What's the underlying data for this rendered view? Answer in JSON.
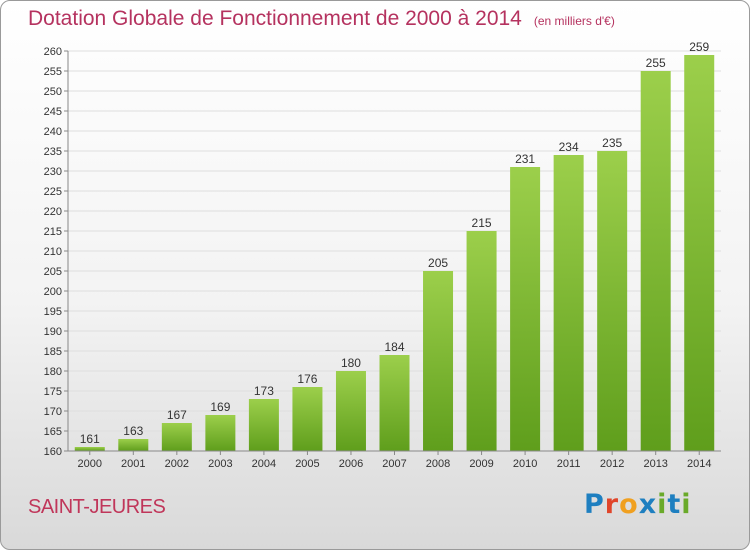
{
  "title": "Dotation Globale de Fonctionnement de 2000 à 2014",
  "subtitle": "(en milliers d'€)",
  "commune": "SAINT-JEURES",
  "logo": {
    "text": "Proxiti",
    "colors": [
      "#1e7fc0",
      "#e0452a",
      "#f0a020",
      "#1e7fc0",
      "#6aaa2a",
      "#1e7fc0",
      "#6aaa2a"
    ]
  },
  "chart_data": {
    "type": "bar",
    "title": "Dotation Globale de Fonctionnement de 2000 à 2014",
    "subtitle": "(en milliers d'€)",
    "xlabel": "",
    "ylabel": "",
    "categories": [
      "2000",
      "2001",
      "2002",
      "2003",
      "2004",
      "2005",
      "2006",
      "2007",
      "2008",
      "2009",
      "2010",
      "2011",
      "2012",
      "2013",
      "2014"
    ],
    "values": [
      161,
      163,
      167,
      169,
      173,
      176,
      180,
      184,
      205,
      215,
      231,
      234,
      235,
      255,
      259
    ],
    "ylim": [
      160,
      260
    ],
    "yticks": [
      160,
      165,
      170,
      175,
      180,
      185,
      190,
      195,
      200,
      205,
      210,
      215,
      220,
      225,
      230,
      235,
      240,
      245,
      250,
      255,
      260
    ],
    "grid": true,
    "bar_color_top": "#9ccf4b",
    "bar_color_bottom": "#5f9e1c"
  }
}
